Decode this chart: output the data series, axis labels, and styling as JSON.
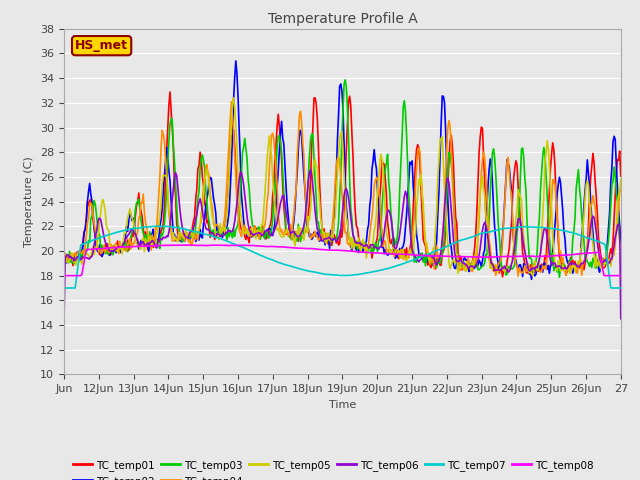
{
  "title": "Temperature Profile A",
  "xlabel": "Time",
  "ylabel": "Temperature (C)",
  "ylim": [
    10,
    38
  ],
  "yticks": [
    10,
    12,
    14,
    16,
    18,
    20,
    22,
    24,
    26,
    28,
    30,
    32,
    34,
    36,
    38
  ],
  "annotation": "HS_met",
  "annotation_color": "#8B0000",
  "annotation_bg": "#FFD700",
  "bg_color": "#E8E8E8",
  "plot_bg": "#E8E8E8",
  "series": {
    "TC_temp01": {
      "color": "#FF0000",
      "lw": 1.2
    },
    "TC_temp02": {
      "color": "#0000FF",
      "lw": 1.2
    },
    "TC_temp03": {
      "color": "#00CC00",
      "lw": 1.2
    },
    "TC_temp04": {
      "color": "#FF8C00",
      "lw": 1.2
    },
    "TC_temp05": {
      "color": "#CCCC00",
      "lw": 1.2
    },
    "TC_temp06": {
      "color": "#9400D3",
      "lw": 1.2
    },
    "TC_temp07": {
      "color": "#00CCCC",
      "lw": 1.2
    },
    "TC_temp08": {
      "color": "#FF00FF",
      "lw": 1.2
    }
  },
  "x_tick_labels": [
    "Jun",
    "12Jun",
    "13Jun",
    "14Jun",
    "15Jun",
    "16Jun",
    "17Jun",
    "18Jun",
    "19Jun",
    "20Jun",
    "21Jun",
    "22Jun",
    "23Jun",
    "24Jun",
    "25Jun",
    "26Jun",
    "27"
  ],
  "n_points": 500,
  "title_fontsize": 10,
  "axis_fontsize": 8,
  "tick_fontsize": 8
}
